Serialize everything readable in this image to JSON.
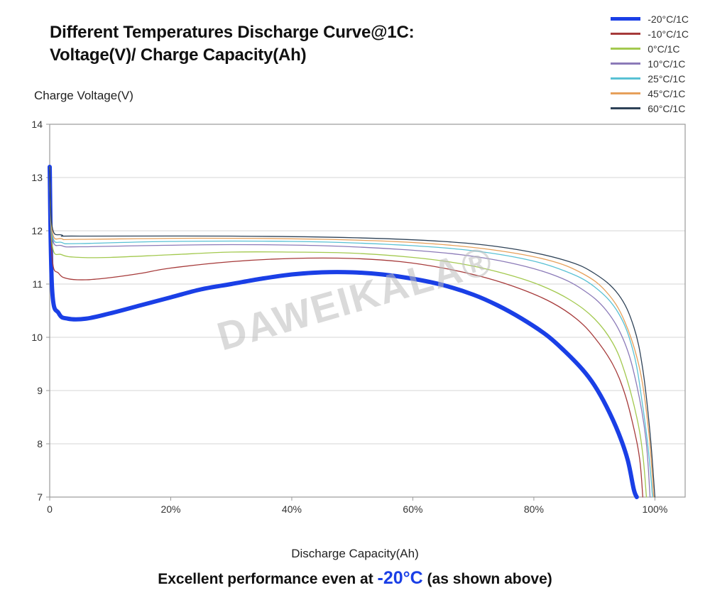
{
  "title_line1": "Different Temperatures Discharge Curve@1C:",
  "title_line2": "Voltage(V)/ Charge Capacity(Ah)",
  "y_axis_label": "Charge Voltage(V)",
  "x_axis_label": "Discharge Capacity(Ah)",
  "caption_prefix": "Excellent performance even at ",
  "caption_highlight": "-20°C",
  "caption_suffix": " (as shown above)",
  "watermark": "DAWEIKALA®",
  "chart": {
    "type": "line",
    "background_color": "#ffffff",
    "plot_border_color": "#9a9a9a",
    "grid_color": "#c9c9c9",
    "axis_text_color": "#333333",
    "title_fontsize": 24,
    "label_fontsize": 17,
    "tick_fontsize": 14,
    "xlim": [
      0,
      105
    ],
    "ylim": [
      7,
      14
    ],
    "xticks": [
      0,
      20,
      40,
      60,
      80,
      100
    ],
    "xtick_labels": [
      "0",
      "20%",
      "40%",
      "60%",
      "80%",
      "100%"
    ],
    "yticks": [
      7,
      8,
      9,
      10,
      11,
      12,
      13,
      14
    ],
    "ytick_labels": [
      "7",
      "8",
      "9",
      "10",
      "11",
      "12",
      "13",
      "14"
    ],
    "grid_y_lines": [
      8,
      9,
      10,
      11,
      12,
      13
    ],
    "legend_position": "top-right",
    "series": [
      {
        "label": "-20°C/1C",
        "color": "#1a3fe6",
        "width": 6,
        "data": [
          [
            0,
            13.2
          ],
          [
            0.4,
            10.9
          ],
          [
            1.5,
            10.45
          ],
          [
            3,
            10.35
          ],
          [
            6,
            10.35
          ],
          [
            10,
            10.45
          ],
          [
            15,
            10.6
          ],
          [
            20,
            10.75
          ],
          [
            25,
            10.9
          ],
          [
            30,
            11.0
          ],
          [
            35,
            11.1
          ],
          [
            40,
            11.18
          ],
          [
            45,
            11.22
          ],
          [
            50,
            11.22
          ],
          [
            55,
            11.18
          ],
          [
            60,
            11.1
          ],
          [
            65,
            10.98
          ],
          [
            70,
            10.8
          ],
          [
            74,
            10.6
          ],
          [
            78,
            10.35
          ],
          [
            82,
            10.05
          ],
          [
            85,
            9.75
          ],
          [
            88,
            9.4
          ],
          [
            90,
            9.1
          ],
          [
            92,
            8.7
          ],
          [
            94,
            8.2
          ],
          [
            95.5,
            7.7
          ],
          [
            96.5,
            7.15
          ],
          [
            97,
            7.0
          ]
        ]
      },
      {
        "label": "-10°C/1C",
        "color": "#a63a3a",
        "width": 1.3,
        "data": [
          [
            0,
            13.2
          ],
          [
            0.4,
            11.5
          ],
          [
            1.5,
            11.2
          ],
          [
            3,
            11.1
          ],
          [
            6,
            11.08
          ],
          [
            10,
            11.12
          ],
          [
            15,
            11.2
          ],
          [
            20,
            11.3
          ],
          [
            30,
            11.42
          ],
          [
            40,
            11.48
          ],
          [
            50,
            11.48
          ],
          [
            58,
            11.42
          ],
          [
            65,
            11.3
          ],
          [
            72,
            11.12
          ],
          [
            78,
            10.9
          ],
          [
            83,
            10.65
          ],
          [
            87,
            10.35
          ],
          [
            90,
            10.0
          ],
          [
            93,
            9.5
          ],
          [
            95,
            8.95
          ],
          [
            96.5,
            8.3
          ],
          [
            97.5,
            7.7
          ],
          [
            98,
            7.0
          ]
        ]
      },
      {
        "label": "0°C/1C",
        "color": "#a3c94f",
        "width": 1.3,
        "data": [
          [
            0,
            13.2
          ],
          [
            0.4,
            11.75
          ],
          [
            2,
            11.55
          ],
          [
            5,
            11.5
          ],
          [
            10,
            11.5
          ],
          [
            20,
            11.55
          ],
          [
            30,
            11.6
          ],
          [
            40,
            11.6
          ],
          [
            50,
            11.58
          ],
          [
            60,
            11.5
          ],
          [
            68,
            11.38
          ],
          [
            75,
            11.2
          ],
          [
            81,
            10.98
          ],
          [
            86,
            10.7
          ],
          [
            90,
            10.35
          ],
          [
            93,
            9.9
          ],
          [
            95,
            9.35
          ],
          [
            97,
            8.5
          ],
          [
            98,
            7.8
          ],
          [
            98.6,
            7.0
          ]
        ]
      },
      {
        "label": "10°C/1C",
        "color": "#8b7ab8",
        "width": 1.3,
        "data": [
          [
            0,
            13.2
          ],
          [
            0.4,
            11.9
          ],
          [
            2,
            11.72
          ],
          [
            5,
            11.7
          ],
          [
            15,
            11.72
          ],
          [
            30,
            11.74
          ],
          [
            45,
            11.72
          ],
          [
            58,
            11.65
          ],
          [
            68,
            11.55
          ],
          [
            76,
            11.4
          ],
          [
            83,
            11.18
          ],
          [
            88,
            10.9
          ],
          [
            92,
            10.5
          ],
          [
            95,
            9.9
          ],
          [
            97,
            9.1
          ],
          [
            98.5,
            8.1
          ],
          [
            99.2,
            7.0
          ]
        ]
      },
      {
        "label": "25°C/1C",
        "color": "#59c1d4",
        "width": 1.3,
        "data": [
          [
            0,
            13.2
          ],
          [
            0.4,
            11.95
          ],
          [
            2,
            11.78
          ],
          [
            5,
            11.76
          ],
          [
            20,
            11.8
          ],
          [
            40,
            11.8
          ],
          [
            55,
            11.75
          ],
          [
            68,
            11.65
          ],
          [
            78,
            11.48
          ],
          [
            85,
            11.25
          ],
          [
            90,
            10.95
          ],
          [
            94,
            10.45
          ],
          [
            96.5,
            9.7
          ],
          [
            98,
            8.7
          ],
          [
            99,
            7.8
          ],
          [
            99.6,
            7.0
          ]
        ]
      },
      {
        "label": "45°C/1C",
        "color": "#e6a05a",
        "width": 1.3,
        "data": [
          [
            0,
            13.2
          ],
          [
            0.4,
            12.0
          ],
          [
            2,
            11.85
          ],
          [
            5,
            11.84
          ],
          [
            25,
            11.86
          ],
          [
            45,
            11.84
          ],
          [
            60,
            11.78
          ],
          [
            72,
            11.66
          ],
          [
            82,
            11.46
          ],
          [
            88,
            11.2
          ],
          [
            92,
            10.85
          ],
          [
            95,
            10.3
          ],
          [
            97.5,
            9.4
          ],
          [
            99,
            8.2
          ],
          [
            99.8,
            7.0
          ]
        ]
      },
      {
        "label": "60°C/1C",
        "color": "#2e4257",
        "width": 1.3,
        "data": [
          [
            0,
            13.2
          ],
          [
            0.4,
            12.08
          ],
          [
            2,
            11.92
          ],
          [
            5,
            11.9
          ],
          [
            30,
            11.9
          ],
          [
            50,
            11.87
          ],
          [
            65,
            11.8
          ],
          [
            76,
            11.67
          ],
          [
            85,
            11.45
          ],
          [
            90,
            11.2
          ],
          [
            94,
            10.8
          ],
          [
            96.5,
            10.2
          ],
          [
            98,
            9.4
          ],
          [
            99.2,
            8.2
          ],
          [
            100,
            7.0
          ]
        ]
      }
    ]
  }
}
